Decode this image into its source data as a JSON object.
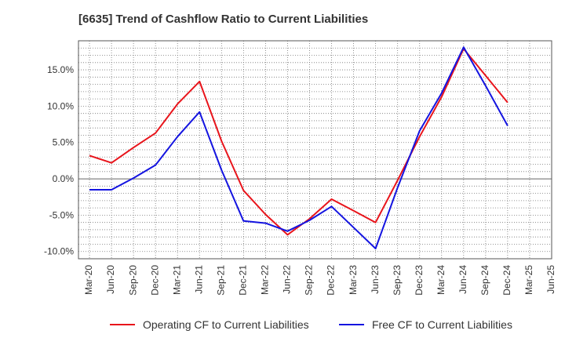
{
  "chart_data": {
    "type": "line",
    "title": "[6635]  Trend of Cashflow Ratio to Current Liabilities",
    "xlabel": "",
    "ylabel": "",
    "categories": [
      "Mar-20",
      "Jun-20",
      "Sep-20",
      "Dec-20",
      "Mar-21",
      "Jun-21",
      "Sep-21",
      "Dec-21",
      "Mar-22",
      "Jun-22",
      "Sep-22",
      "Dec-22",
      "Mar-23",
      "Jun-23",
      "Sep-23",
      "Dec-23",
      "Mar-24",
      "Jun-24",
      "Sep-24",
      "Dec-24",
      "Mar-25",
      "Jun-25"
    ],
    "y_ticks": [
      15.0,
      10.0,
      5.0,
      0.0,
      -5.0,
      -10.0
    ],
    "y_tick_labels": [
      "15.0%",
      "10.0%",
      "5.0%",
      "0.0%",
      "-5.0%",
      "-10.0%"
    ],
    "ylim": [
      -11.0,
      19.0
    ],
    "grid": true,
    "legend_position": "bottom",
    "series": [
      {
        "name": "Operating CF to Current Liabilities",
        "color": "#e8141b",
        "values": [
          3.2,
          2.2,
          4.3,
          6.3,
          10.3,
          13.4,
          5.2,
          -1.6,
          -4.9,
          -7.7,
          -5.5,
          -2.8,
          -4.4,
          -6.0,
          -0.2,
          5.8,
          11.3,
          17.9,
          14.2,
          10.5,
          null,
          null
        ]
      },
      {
        "name": "Free CF to Current Liabilities",
        "color": "#1414e0",
        "values": [
          -1.5,
          -1.5,
          0.1,
          1.9,
          5.8,
          9.2,
          1.2,
          -5.8,
          -6.1,
          -7.2,
          -5.7,
          -3.8,
          -6.7,
          -9.6,
          -1.2,
          6.6,
          11.8,
          18.1,
          12.8,
          7.3,
          null,
          null
        ]
      }
    ]
  }
}
